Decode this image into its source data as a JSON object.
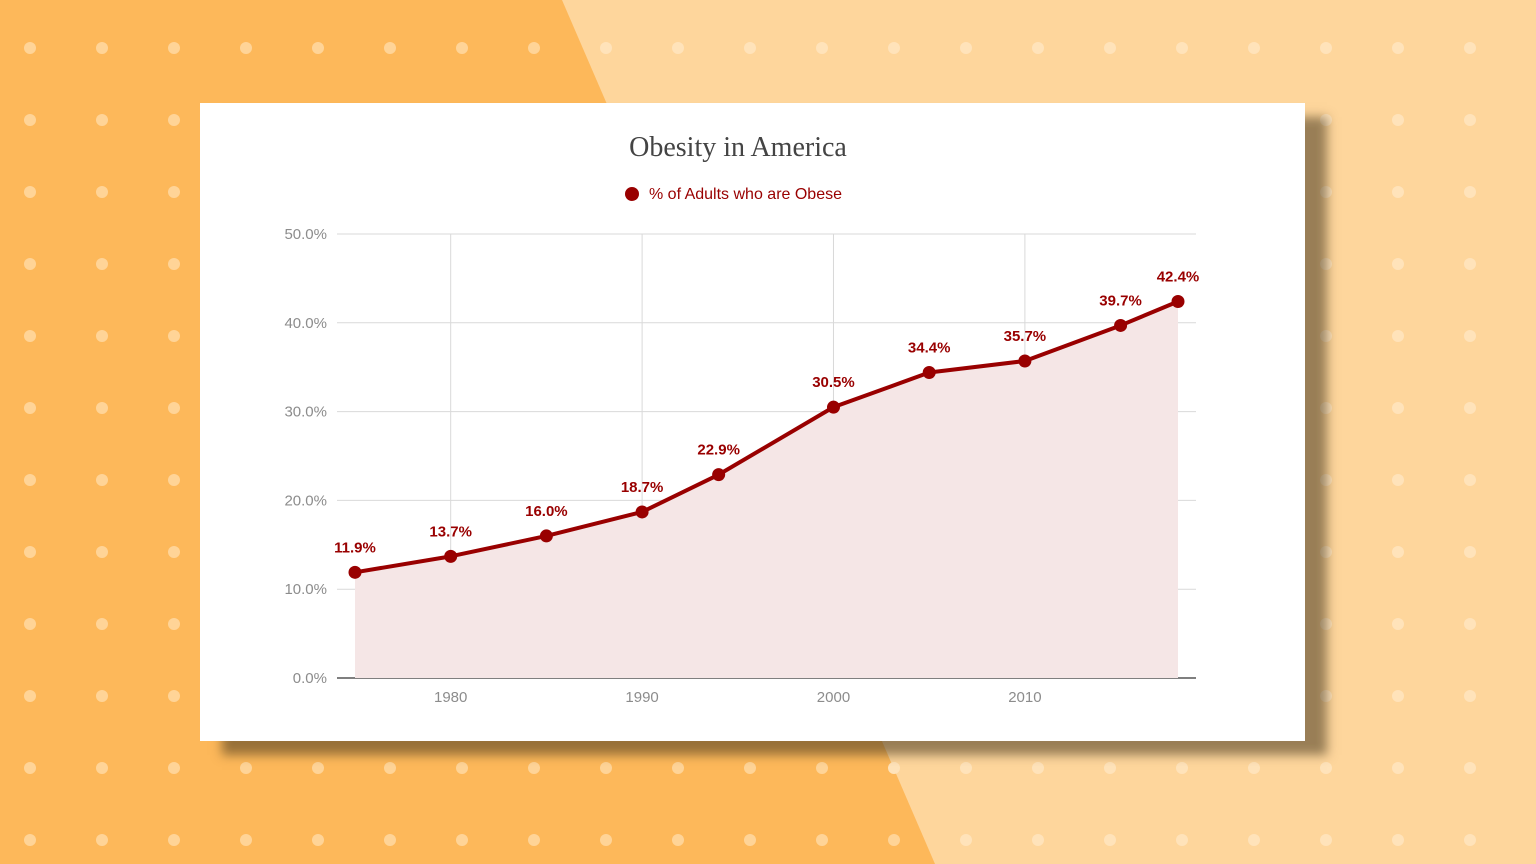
{
  "background": {
    "left_color": "#fdb85a",
    "right_color": "#fed69c",
    "dot_color_left": "#ffd497",
    "dot_color_right": "#ffe3ba"
  },
  "colors": {
    "series": "#990000",
    "area_fill": "#f5e6e6",
    "grid": "#d9d9d9",
    "title": "#444444",
    "axis_text": "#8c8c8c"
  },
  "chart_data": {
    "type": "area",
    "title": "Obesity in America",
    "xlabel": "",
    "ylabel": "",
    "legend_position": "top",
    "grid": true,
    "series": [
      {
        "name": "% of Adults who are Obese",
        "x": [
          1975,
          1980,
          1985,
          1990,
          1994,
          2000,
          2005,
          2010,
          2015,
          2018
        ],
        "values": [
          11.9,
          13.7,
          16.0,
          18.7,
          22.9,
          30.5,
          34.4,
          35.7,
          39.7,
          42.4
        ],
        "labels": [
          "11.9%",
          "13.7%",
          "16.0%",
          "18.7%",
          "22.9%",
          "30.5%",
          "34.4%",
          "35.7%",
          "39.7%",
          "42.4%"
        ]
      }
    ],
    "x_ticks": [
      1980,
      1990,
      2000,
      2010
    ],
    "x_tick_labels": [
      "1980",
      "1990",
      "2000",
      "2010"
    ],
    "y_ticks": [
      0,
      10,
      20,
      30,
      40,
      50
    ],
    "y_tick_labels": [
      "0.0%",
      "10.0%",
      "20.0%",
      "30.0%",
      "40.0%",
      "50.0%"
    ],
    "xlim": [
      1975,
      2018
    ],
    "ylim": [
      0,
      50
    ]
  }
}
